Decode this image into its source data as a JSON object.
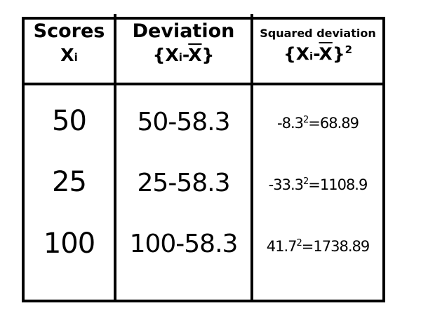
{
  "header": {
    "scores": {
      "title": "Scores",
      "symbol": "X",
      "subscript": "i"
    },
    "deviation": {
      "title": "Deviation",
      "open": "{",
      "symbol": "X",
      "subscript": "i",
      "minus": "-",
      "mean": "X",
      "close": "}"
    },
    "squared": {
      "title": "Squared deviation",
      "open": "{",
      "symbol": "X",
      "subscript": "i",
      "minus": "-",
      "mean": "X",
      "close": "}",
      "exponent": "2"
    }
  },
  "rows": [
    {
      "score": "50",
      "deviation": "50-58.3",
      "sq_base": "-8.3",
      "sq_exp": "2",
      "sq_result": "=68.89"
    },
    {
      "score": "25",
      "deviation": "25-58.3",
      "sq_base": "-33.3",
      "sq_exp": "2",
      "sq_result": "=1108.9"
    },
    {
      "score": "100",
      "deviation": "100-58.3",
      "sq_base": "41.7",
      "sq_exp": "2",
      "sq_result": "=1738.89"
    }
  ]
}
